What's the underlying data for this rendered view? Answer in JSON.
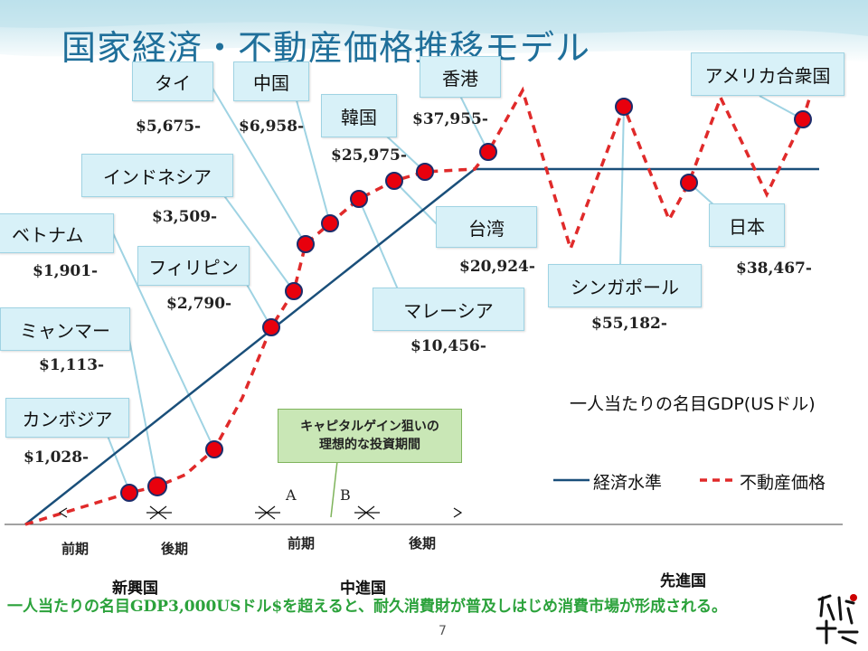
{
  "slide": {
    "title": "国家経済・不動産価格推移モデル",
    "page_number": "7",
    "bottom_note": "一人当たりの名目GDP3,000USドル$を超えると、耐久消費財が普及しはじめ消費市場が形成される。",
    "gdp_axis_label": "一人当たりの名目GDP(USドル)",
    "note_box": [
      "キャピタルゲイン狙いの",
      "理想的な投資期間"
    ],
    "legend": {
      "economy": "経済水準",
      "realestate": "不動産価格"
    },
    "markers": {
      "a": "A",
      "b": "B"
    },
    "phases": {
      "early1": "前期",
      "late1": "後期",
      "early2": "前期",
      "late2": "後期"
    },
    "stages": {
      "emerging": "新興国",
      "middle": "中進国",
      "advanced": "先進国"
    },
    "colors": {
      "economy_line": "#1a4f7a",
      "realestate_line": "#e02a2a",
      "dot_fill": "#e8000d",
      "dot_stroke": "#1c2c6b",
      "box_fill": "#d8f1f8"
    }
  },
  "countries": [
    {
      "name": "カンボジア",
      "gdp": "$1,028-"
    },
    {
      "name": "ミャンマー",
      "gdp": "$1,113-"
    },
    {
      "name": "ベトナム",
      "gdp": "$1,901-"
    },
    {
      "name": "フィリピン",
      "gdp": "$2,790-"
    },
    {
      "name": "インドネシア",
      "gdp": "$3,509-"
    },
    {
      "name": "タイ",
      "gdp": "$5,675-"
    },
    {
      "name": "中国",
      "gdp": "$6,958-"
    },
    {
      "name": "マレーシア",
      "gdp": "$10,456-"
    },
    {
      "name": "台湾",
      "gdp": "$20,924-"
    },
    {
      "name": "韓国",
      "gdp": "$25,975-"
    },
    {
      "name": "香港",
      "gdp": "$37,955-"
    },
    {
      "name": "日本",
      "gdp": "$38,467-"
    },
    {
      "name": "シンガポール",
      "gdp": "$55,182-"
    },
    {
      "name": "アメリカ合衆国",
      "gdp": "$"
    }
  ]
}
